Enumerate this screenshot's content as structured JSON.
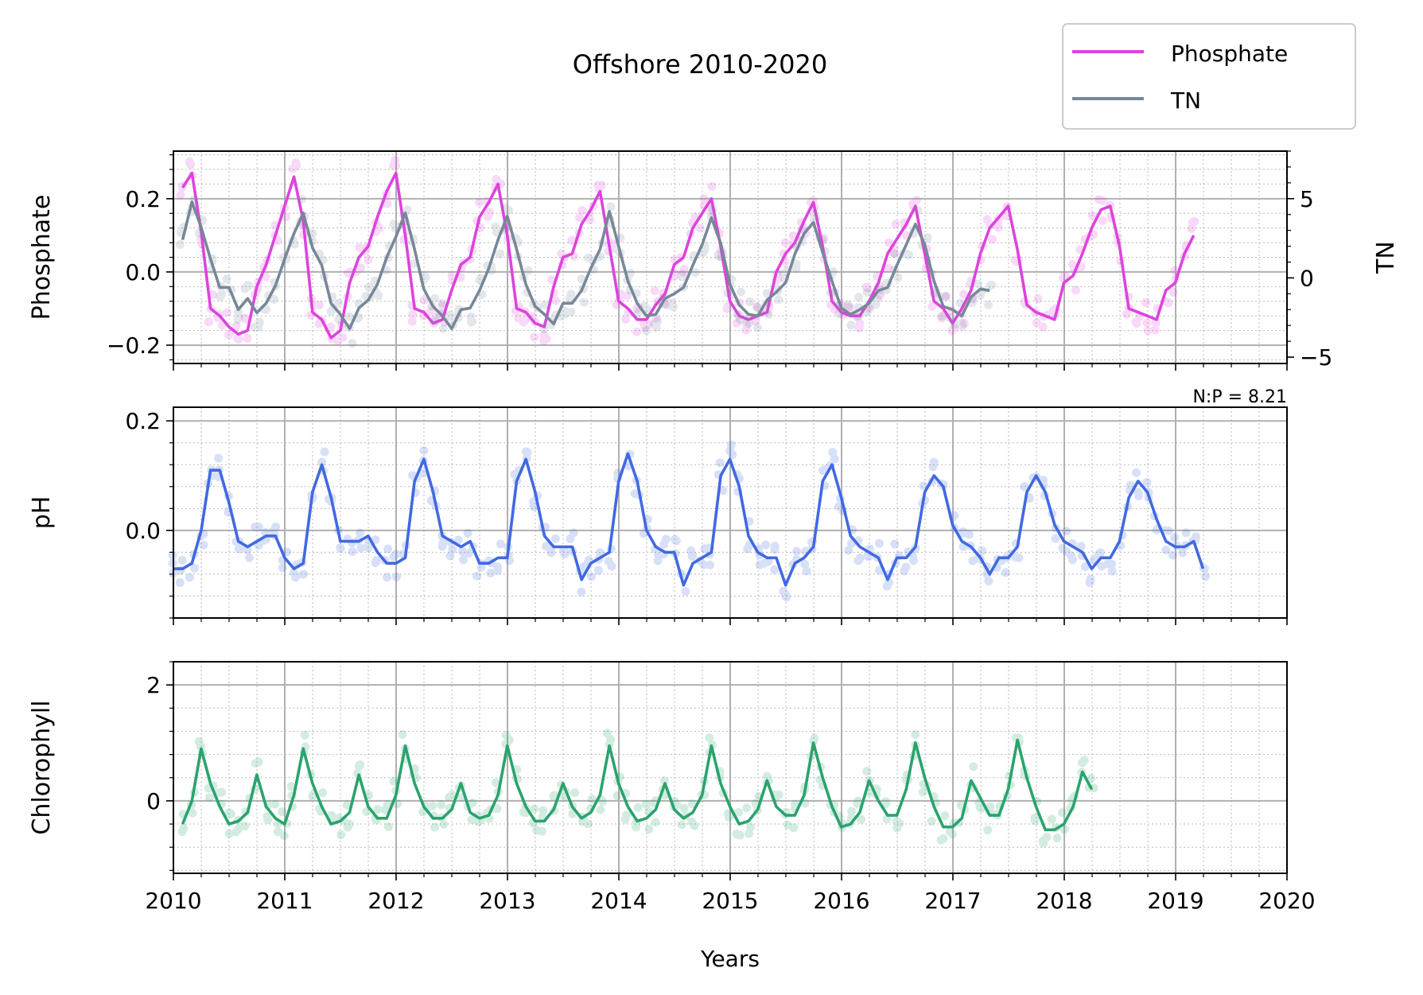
{
  "chart_data": {
    "title": "Offshore 2010-2020",
    "type": "line",
    "xlabel": "Years",
    "xlim": [
      2010,
      2020
    ],
    "x_ticks": [
      "2010",
      "2011",
      "2012",
      "2013",
      "2014",
      "2015",
      "2016",
      "2017",
      "2018",
      "2019",
      "2020"
    ],
    "grid": true,
    "legend": {
      "placement": "top-right",
      "entries": [
        {
          "label": "Phosphate",
          "color": "#dd44dd"
        },
        {
          "label": "TN",
          "color": "#778899"
        }
      ]
    },
    "annotation": "N:P = 8.21",
    "panels": [
      {
        "name": "phosphate-panel",
        "ylabel": "Phosphate",
        "ylim": [
          -0.25,
          0.33
        ],
        "yticks": [
          {
            "v": 0.2,
            "label": "0.2"
          },
          {
            "v": 0.0,
            "label": "0.0"
          },
          {
            "v": -0.2,
            "label": "−0.2"
          }
        ],
        "secondary_axis": {
          "label": "TN",
          "ylim": [
            -5.4,
            8.0
          ],
          "yticks": [
            {
              "v": 5,
              "label": "5"
            },
            {
              "v": 0,
              "label": "0"
            },
            {
              "v": -5,
              "label": "−5"
            }
          ]
        },
        "series": [
          {
            "name": "Phosphate",
            "color": "#dd44dd",
            "axis": "left",
            "start": 2010.083,
            "step": 0.0833,
            "values": [
              0.23,
              0.27,
              0.11,
              -0.1,
              -0.12,
              -0.15,
              -0.17,
              -0.16,
              -0.04,
              0.02,
              0.1,
              0.18,
              0.26,
              0.14,
              -0.11,
              -0.13,
              -0.18,
              -0.16,
              -0.03,
              0.04,
              0.07,
              0.15,
              0.22,
              0.27,
              0.1,
              -0.1,
              -0.11,
              -0.14,
              -0.13,
              -0.05,
              0.02,
              0.04,
              0.15,
              0.19,
              0.24,
              0.1,
              -0.1,
              -0.11,
              -0.14,
              -0.15,
              -0.04,
              0.04,
              0.05,
              0.13,
              0.17,
              0.22,
              0.07,
              -0.08,
              -0.1,
              -0.13,
              -0.13,
              -0.09,
              -0.06,
              0.02,
              0.04,
              0.12,
              0.16,
              0.2,
              0.07,
              -0.08,
              -0.12,
              -0.13,
              -0.12,
              -0.11,
              0.0,
              0.05,
              0.08,
              0.14,
              0.19,
              0.07,
              -0.08,
              -0.11,
              -0.12,
              -0.12,
              -0.08,
              -0.03,
              0.05,
              0.09,
              0.13,
              0.18,
              0.05,
              -0.08,
              -0.1,
              -0.14,
              -0.1,
              -0.05,
              0.05,
              0.12,
              0.15,
              0.18,
              0.06,
              -0.09,
              -0.11,
              -0.12,
              -0.13,
              -0.03,
              -0.01,
              0.05,
              0.12,
              0.17,
              0.18,
              0.07,
              -0.1,
              -0.11,
              -0.12,
              -0.13,
              -0.05,
              -0.03,
              0.05,
              0.1
            ]
          },
          {
            "name": "TN",
            "color": "#778899",
            "axis": "right",
            "start": 2010.083,
            "step": 0.0833,
            "values": [
              2.4,
              4.8,
              3.2,
              1.2,
              -0.6,
              -0.6,
              -2.0,
              -1.3,
              -2.2,
              -1.6,
              -0.5,
              1.2,
              2.8,
              4.1,
              1.9,
              0.8,
              -1.6,
              -2.3,
              -3.2,
              -1.9,
              -1.4,
              -0.4,
              1.3,
              2.6,
              4.1,
              1.8,
              -0.7,
              -1.8,
              -2.4,
              -3.2,
              -2.0,
              -1.9,
              -0.8,
              0.6,
              2.4,
              3.9,
              1.8,
              -0.4,
              -1.8,
              -2.3,
              -2.9,
              -1.6,
              -1.6,
              -0.8,
              0.6,
              1.8,
              4.2,
              2.0,
              -0.2,
              -1.6,
              -2.4,
              -2.3,
              -1.3,
              -1.0,
              -0.6,
              0.8,
              2.1,
              3.8,
              2.2,
              -0.4,
              -1.7,
              -2.3,
              -2.4,
              -1.4,
              -0.9,
              -0.3,
              1.5,
              2.8,
              3.5,
              1.6,
              -0.2,
              -1.9,
              -2.3,
              -2.0,
              -1.6,
              -0.8,
              -0.6,
              0.8,
              2.1,
              3.4,
              2.1,
              -0.2,
              -1.8,
              -2.0,
              -2.4,
              -1.2,
              -0.7,
              -0.8
            ]
          }
        ]
      },
      {
        "name": "ph-panel",
        "ylabel": "pH",
        "ylim": [
          -0.16,
          0.225
        ],
        "yticks": [
          {
            "v": 0.2,
            "label": "0.2"
          },
          {
            "v": 0.0,
            "label": "0.0"
          }
        ],
        "series": [
          {
            "name": "pH",
            "color": "#4169e1",
            "axis": "left",
            "start": 2010.0,
            "step": 0.0833,
            "values": [
              -0.07,
              -0.07,
              -0.06,
              0.0,
              0.11,
              0.11,
              0.05,
              -0.02,
              -0.03,
              -0.02,
              -0.01,
              -0.01,
              -0.05,
              -0.07,
              -0.06,
              0.07,
              0.12,
              0.06,
              -0.02,
              -0.02,
              -0.02,
              -0.01,
              -0.04,
              -0.06,
              -0.06,
              -0.05,
              0.09,
              0.13,
              0.07,
              -0.01,
              -0.02,
              -0.03,
              -0.02,
              -0.06,
              -0.06,
              -0.05,
              -0.05,
              0.09,
              0.13,
              0.07,
              -0.01,
              -0.03,
              -0.03,
              -0.03,
              -0.09,
              -0.06,
              -0.05,
              -0.04,
              0.09,
              0.14,
              0.09,
              0.0,
              -0.03,
              -0.04,
              -0.04,
              -0.1,
              -0.06,
              -0.05,
              -0.04,
              0.1,
              0.13,
              0.08,
              -0.01,
              -0.04,
              -0.05,
              -0.05,
              -0.1,
              -0.06,
              -0.05,
              -0.03,
              0.09,
              0.12,
              0.06,
              -0.01,
              -0.03,
              -0.04,
              -0.05,
              -0.09,
              -0.05,
              -0.05,
              -0.03,
              0.07,
              0.1,
              0.08,
              0.01,
              -0.02,
              -0.03,
              -0.05,
              -0.08,
              -0.05,
              -0.05,
              -0.03,
              0.07,
              0.1,
              0.07,
              0.01,
              -0.02,
              -0.03,
              -0.04,
              -0.07,
              -0.05,
              -0.05,
              -0.02,
              0.06,
              0.09,
              0.07,
              0.02,
              -0.02,
              -0.03,
              -0.03,
              -0.02,
              -0.07
            ]
          }
        ]
      },
      {
        "name": "chlorophyll-panel",
        "ylabel": "Chlorophyll",
        "ylim": [
          -1.25,
          2.4
        ],
        "yticks": [
          {
            "v": 2,
            "label": "2"
          },
          {
            "v": 0,
            "label": "0"
          }
        ],
        "series": [
          {
            "name": "Chlorophyll",
            "color": "#2aa36d",
            "axis": "left",
            "start": 2010.083,
            "step": 0.0833,
            "values": [
              -0.4,
              0.0,
              0.9,
              0.3,
              -0.1,
              -0.4,
              -0.35,
              -0.2,
              0.45,
              -0.1,
              -0.3,
              -0.4,
              0.1,
              0.9,
              0.3,
              -0.1,
              -0.4,
              -0.35,
              -0.2,
              0.45,
              -0.1,
              -0.3,
              -0.3,
              0.1,
              0.95,
              0.3,
              -0.1,
              -0.3,
              -0.3,
              -0.15,
              0.3,
              -0.2,
              -0.3,
              -0.25,
              0.1,
              0.95,
              0.3,
              -0.1,
              -0.35,
              -0.35,
              -0.15,
              0.3,
              -0.1,
              -0.3,
              -0.2,
              0.1,
              0.95,
              0.3,
              -0.1,
              -0.35,
              -0.3,
              -0.15,
              0.3,
              -0.15,
              -0.3,
              -0.2,
              0.1,
              0.95,
              0.3,
              -0.1,
              -0.4,
              -0.35,
              -0.15,
              0.35,
              -0.1,
              -0.25,
              -0.25,
              0.1,
              1.0,
              0.4,
              -0.1,
              -0.45,
              -0.4,
              -0.2,
              0.35,
              0.0,
              -0.25,
              -0.25,
              0.2,
              1.0,
              0.4,
              -0.1,
              -0.45,
              -0.45,
              -0.3,
              0.35,
              0.05,
              -0.25,
              -0.25,
              0.2,
              1.05,
              0.4,
              -0.1,
              -0.5,
              -0.5,
              -0.4,
              -0.1,
              0.5,
              0.2
            ]
          }
        ]
      }
    ]
  }
}
